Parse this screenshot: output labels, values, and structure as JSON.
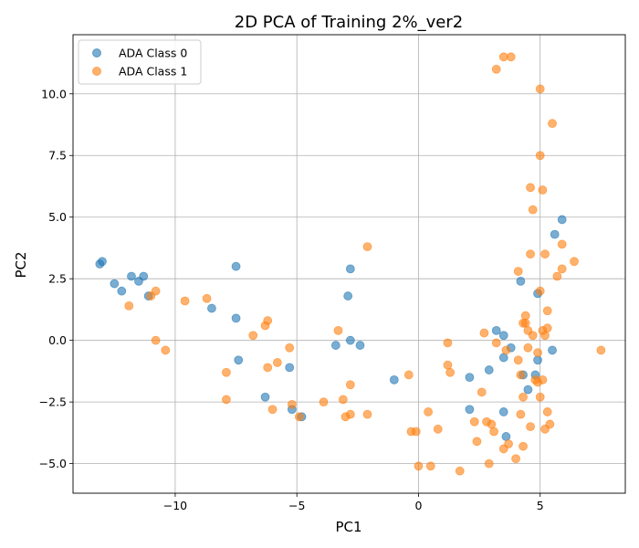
{
  "chart_data": {
    "type": "scatter",
    "title": "2D PCA of Training 2%_ver2",
    "xlabel": "PC1",
    "ylabel": "PC2",
    "xlim": [
      -14.2,
      8.5
    ],
    "ylim": [
      -6.2,
      12.4
    ],
    "xticks": [
      -10,
      -5,
      0,
      5
    ],
    "xtick_labels": [
      "−10",
      "−5",
      "0",
      "5"
    ],
    "yticks": [
      -5.0,
      -2.5,
      0.0,
      2.5,
      5.0,
      7.5,
      10.0
    ],
    "ytick_labels": [
      "−5.0",
      "−2.5",
      "0.0",
      "2.5",
      "5.0",
      "7.5",
      "10.0"
    ],
    "grid": true,
    "legend_position": "top-left",
    "series": [
      {
        "name": "ADA Class 0",
        "color": "#1f77b4",
        "points": [
          [
            -13.1,
            3.1
          ],
          [
            -13.0,
            3.2
          ],
          [
            -12.5,
            2.3
          ],
          [
            -12.2,
            2.0
          ],
          [
            -11.8,
            2.6
          ],
          [
            -11.5,
            2.4
          ],
          [
            -11.3,
            2.6
          ],
          [
            -11.1,
            1.8
          ],
          [
            -8.5,
            1.3
          ],
          [
            -7.5,
            3.0
          ],
          [
            -7.5,
            0.9
          ],
          [
            -7.4,
            -0.8
          ],
          [
            -6.3,
            -2.3
          ],
          [
            -5.3,
            -1.1
          ],
          [
            -5.2,
            -2.8
          ],
          [
            -4.8,
            -3.1
          ],
          [
            -3.4,
            -0.2
          ],
          [
            -2.9,
            1.8
          ],
          [
            -2.8,
            2.9
          ],
          [
            -2.8,
            0.0
          ],
          [
            -2.4,
            -0.2
          ],
          [
            -1.0,
            -1.6
          ],
          [
            2.1,
            -1.5
          ],
          [
            2.1,
            -2.8
          ],
          [
            2.9,
            -1.2
          ],
          [
            3.2,
            0.4
          ],
          [
            3.5,
            0.2
          ],
          [
            3.5,
            -0.7
          ],
          [
            3.5,
            -2.9
          ],
          [
            3.6,
            -3.9
          ],
          [
            3.8,
            -0.3
          ],
          [
            4.2,
            2.4
          ],
          [
            4.3,
            -1.4
          ],
          [
            4.5,
            -2.0
          ],
          [
            4.8,
            -1.4
          ],
          [
            4.9,
            1.9
          ],
          [
            4.9,
            -0.8
          ],
          [
            5.5,
            -0.4
          ],
          [
            5.6,
            4.3
          ],
          [
            5.9,
            4.9
          ]
        ]
      },
      {
        "name": "ADA Class 1",
        "color": "#ff7f0e",
        "points": [
          [
            -11.9,
            1.4
          ],
          [
            -11.0,
            1.8
          ],
          [
            -10.8,
            2.0
          ],
          [
            -10.8,
            0.0
          ],
          [
            -10.4,
            -0.4
          ],
          [
            -9.6,
            1.6
          ],
          [
            -8.7,
            1.7
          ],
          [
            -7.9,
            -1.3
          ],
          [
            -7.9,
            -2.4
          ],
          [
            -6.8,
            0.2
          ],
          [
            -6.3,
            0.6
          ],
          [
            -6.2,
            0.8
          ],
          [
            -6.2,
            -1.1
          ],
          [
            -6.0,
            -2.8
          ],
          [
            -5.8,
            -0.9
          ],
          [
            -5.3,
            -0.3
          ],
          [
            -5.2,
            -2.6
          ],
          [
            -4.9,
            -3.1
          ],
          [
            -3.9,
            -2.5
          ],
          [
            -3.3,
            0.4
          ],
          [
            -3.1,
            -2.4
          ],
          [
            -3.0,
            -3.1
          ],
          [
            -2.8,
            -1.8
          ],
          [
            -2.8,
            -3.0
          ],
          [
            -2.1,
            3.8
          ],
          [
            -2.1,
            -3.0
          ],
          [
            -0.4,
            -1.4
          ],
          [
            -0.3,
            -3.7
          ],
          [
            -0.1,
            -3.7
          ],
          [
            0.0,
            -5.1
          ],
          [
            0.4,
            -2.9
          ],
          [
            0.5,
            -5.1
          ],
          [
            0.8,
            -3.6
          ],
          [
            1.2,
            -0.1
          ],
          [
            1.2,
            -1.0
          ],
          [
            1.3,
            -1.3
          ],
          [
            1.7,
            -5.3
          ],
          [
            2.3,
            -3.3
          ],
          [
            2.4,
            -4.1
          ],
          [
            2.6,
            -2.1
          ],
          [
            2.7,
            0.3
          ],
          [
            2.8,
            -3.3
          ],
          [
            2.9,
            -5.0
          ],
          [
            3.0,
            -3.4
          ],
          [
            3.1,
            -3.7
          ],
          [
            3.2,
            11.0
          ],
          [
            3.2,
            -0.1
          ],
          [
            3.5,
            11.5
          ],
          [
            3.5,
            -4.4
          ],
          [
            3.6,
            -0.4
          ],
          [
            3.7,
            -4.2
          ],
          [
            3.8,
            11.5
          ],
          [
            4.0,
            -4.8
          ],
          [
            4.1,
            2.8
          ],
          [
            4.1,
            -0.8
          ],
          [
            4.2,
            -1.4
          ],
          [
            4.2,
            -3.0
          ],
          [
            4.3,
            -4.3
          ],
          [
            4.3,
            0.7
          ],
          [
            4.3,
            -2.3
          ],
          [
            4.4,
            1.0
          ],
          [
            4.4,
            0.7
          ],
          [
            4.5,
            0.4
          ],
          [
            4.5,
            -0.3
          ],
          [
            4.6,
            6.2
          ],
          [
            4.6,
            3.5
          ],
          [
            4.6,
            -3.5
          ],
          [
            4.7,
            5.3
          ],
          [
            4.7,
            0.2
          ],
          [
            4.8,
            -1.6
          ],
          [
            4.9,
            -1.7
          ],
          [
            4.9,
            -0.5
          ],
          [
            5.0,
            10.2
          ],
          [
            5.0,
            7.5
          ],
          [
            5.0,
            2.0
          ],
          [
            5.0,
            -2.3
          ],
          [
            5.1,
            6.1
          ],
          [
            5.1,
            0.4
          ],
          [
            5.1,
            -1.6
          ],
          [
            5.2,
            3.5
          ],
          [
            5.2,
            0.2
          ],
          [
            5.2,
            -3.6
          ],
          [
            5.3,
            1.2
          ],
          [
            5.3,
            0.5
          ],
          [
            5.3,
            -2.9
          ],
          [
            5.4,
            -3.4
          ],
          [
            5.5,
            8.8
          ],
          [
            5.7,
            2.6
          ],
          [
            5.9,
            3.9
          ],
          [
            5.9,
            2.9
          ],
          [
            6.4,
            3.2
          ],
          [
            7.5,
            -0.4
          ]
        ]
      }
    ]
  }
}
